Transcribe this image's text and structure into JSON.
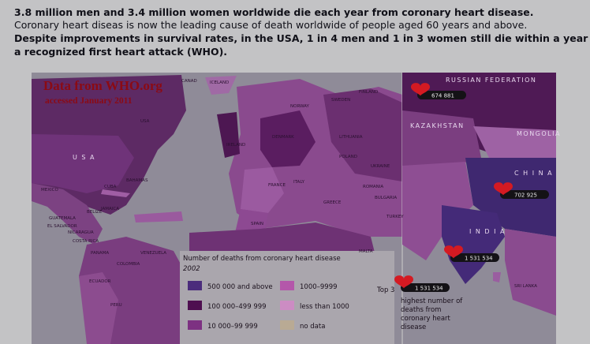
{
  "header": {
    "line1": "3.8 million men and 3.4 million women worldwide die each year from coronary heart disease.",
    "line2": "Coronary heart diseas is now the leading cause of death worldwide of people aged 60 years and above.",
    "line3": "Despite improvements in survival rates, in the USA, 1 in 4 men and 1 in 3 women still die within a year of",
    "line4": "a recognized first heart attack (WHO)."
  },
  "map": {
    "source": "Data from WHO.org",
    "accessed": "accessed  January 2011",
    "labels": [
      "CANAD",
      "ICELAND",
      "USA",
      "U S A",
      "MEXICO",
      "CUBA",
      "BAHAMAS",
      "JAMAICA",
      "BELIZE",
      "GUATEMALA",
      "EL SALVADOR",
      "NICARAGUA",
      "COSTA RICA",
      "PANAMA",
      "VENEZUELA",
      "COLOMBIA",
      "ECUADOR",
      "PERU",
      "IRELAND",
      "NORWAY",
      "SWEDEN",
      "FINLAND",
      "DENMARK",
      "LITHUANIA",
      "POLAND",
      "FRANCE",
      "SPAIN",
      "ITALY",
      "GREECE",
      "ROMANIA",
      "BULGARIA",
      "UKRAINE",
      "TURKEY",
      "MALTA",
      "RUSSIAN FEDERATION",
      "KAZAKHSTAN",
      "MONGOLIA",
      "C H I N A",
      "I N D I A",
      "SRI LANKA"
    ]
  },
  "legend": {
    "title": "Number of deaths from coronary heart disease",
    "year": "2002",
    "items": [
      "500 000 and above",
      "100 000–499 999",
      "10 000–99 999",
      "1000–9999",
      "less than 1000",
      "no data"
    ]
  },
  "top3": {
    "label": "Top 3",
    "description": [
      "highest number of",
      "deaths from",
      "coronary heart",
      "disease"
    ],
    "callouts": [
      "674 881",
      "702 925",
      "1 531 534",
      "1 531 534"
    ]
  }
}
